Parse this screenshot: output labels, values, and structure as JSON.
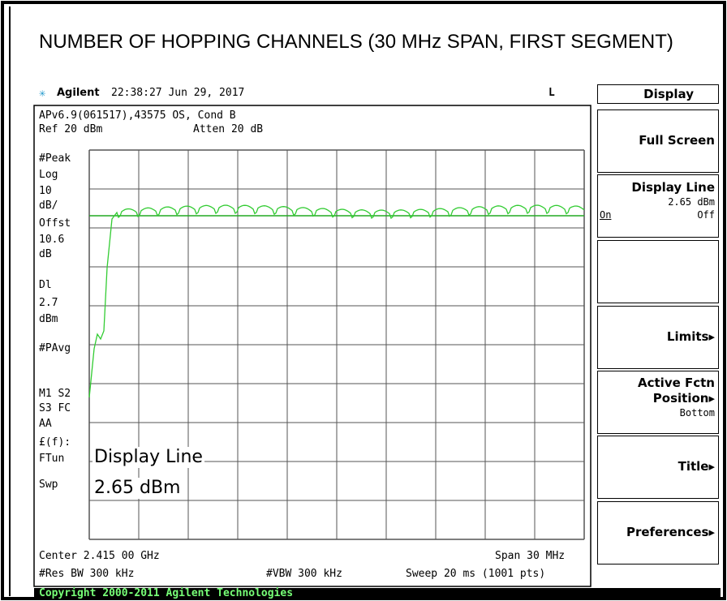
{
  "title": "NUMBER OF HOPPING CHANNELS (30 MHz SPAN, FIRST SEGMENT)",
  "header": {
    "brand": "Agilent",
    "timestamp": "22:38:27  Jun 29, 2017",
    "indicator": "L"
  },
  "screen": {
    "info_line": "APv6.9(061517),43575 OS, Cond B",
    "ref": "Ref 20 dBm",
    "atten": "Atten 20 dB",
    "left_labels": [
      "#Peak",
      "Log",
      "10",
      "dB/",
      "Offst",
      "10.6",
      "dB",
      "Dl",
      "2.7",
      "dBm",
      "#PAvg",
      "M1  S2",
      "S3  FC",
      "AA",
      "£(f):",
      "FTun",
      "Swp"
    ],
    "active_function": [
      "Display Line",
      "2.65 dBm"
    ],
    "center": "Center 2.415 00 GHz",
    "span": "Span 30 MHz",
    "res_bw": "#Res BW 300 kHz",
    "vbw": "#VBW 300 kHz",
    "sweep": "Sweep 20 ms (1001 pts)"
  },
  "menu": {
    "title": "Display",
    "keys": [
      {
        "label": "Full Screen"
      },
      {
        "label": "Display Line",
        "value": "2.65 dBm",
        "left": "On",
        "right": "Off"
      },
      {
        "label": ""
      },
      {
        "label": "Limits▸"
      },
      {
        "label": "Active Fctn",
        "label2": "Position▸",
        "value": "Bottom"
      },
      {
        "label": "Title▸"
      },
      {
        "label": "Preferences▸"
      }
    ]
  },
  "footer": "Copyright 2000-2011 Agilent Technologies"
}
